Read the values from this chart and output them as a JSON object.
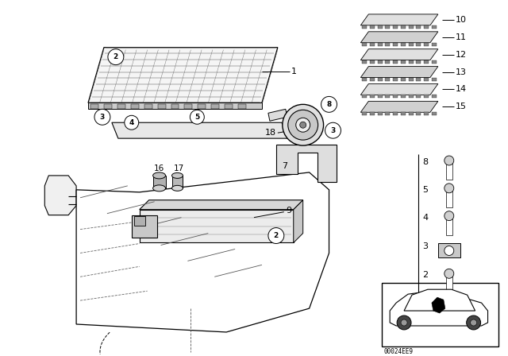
{
  "bg_color": "#ffffff",
  "fig_width": 6.4,
  "fig_height": 4.48,
  "dpi": 100,
  "watermark": "00024EE9"
}
